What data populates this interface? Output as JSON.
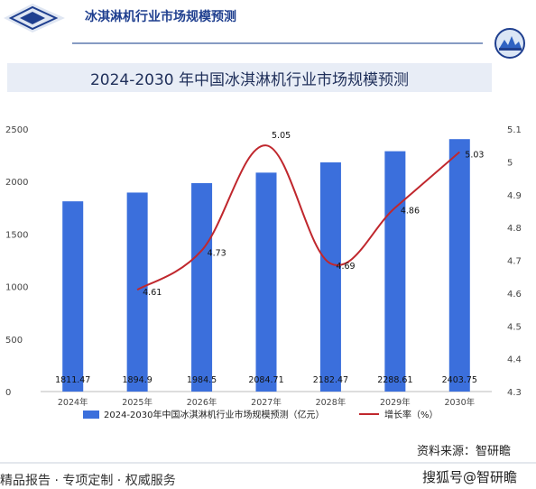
{
  "header": {
    "title": "冰淇淋机行业市场规模预测"
  },
  "chart_data": {
    "type": "bar",
    "title": "2024-2030 年中国冰淇淋机行业市场规模预测",
    "categories": [
      "2024年",
      "2025年",
      "2026年",
      "2027年",
      "2028年",
      "2029年",
      "2030年"
    ],
    "series": [
      {
        "name": "2024-2030年中国冰淇淋机行业市场规模预测（亿元）",
        "type": "bar",
        "axis": "left",
        "color": "#3b6fdc",
        "values": [
          1811.47,
          1894.9,
          1984.5,
          2084.71,
          2182.47,
          2288.61,
          2403.75
        ],
        "labels": [
          "1811.47",
          "1894.9",
          "1984.5",
          "2084.71",
          "2182.47",
          "2288.61",
          "2403.75"
        ]
      },
      {
        "name": "增长率（%）",
        "type": "line",
        "axis": "right",
        "color": "#c0272d",
        "values": [
          null,
          4.61,
          4.73,
          5.05,
          4.69,
          4.86,
          5.03
        ],
        "labels": [
          "",
          "4.61",
          "4.73",
          "5.05",
          "4.69",
          "4.86",
          "5.03"
        ]
      }
    ],
    "y_left": {
      "min": 0,
      "max": 2500,
      "ticks": [
        "0",
        "500",
        "1000",
        "1500",
        "2000",
        "2500"
      ]
    },
    "y_right": {
      "min": 4.3,
      "max": 5.1,
      "ticks": [
        "4.3",
        "4.4",
        "4.5",
        "4.6",
        "4.7",
        "4.8",
        "4.9",
        "5",
        "5.1"
      ]
    },
    "grid": false,
    "legend": "bottom"
  },
  "source": "资料来源：智研瞻",
  "footer": {
    "left": "精品报告 · 专项定制 · 权威服务",
    "right": "搜狐号@智研瞻"
  },
  "colors": {
    "accent_blue": "#1f3f8f",
    "bar": "#3b6fdc",
    "line": "#c0272d"
  },
  "icons": [
    "diamond-logo-icon",
    "globe-logo-icon"
  ]
}
